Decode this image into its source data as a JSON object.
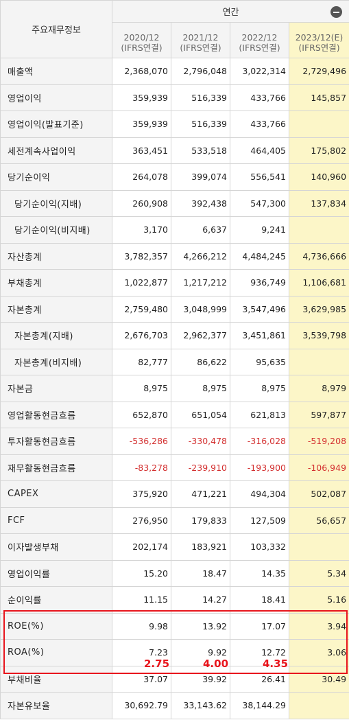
{
  "header": {
    "title": "주요재무정보",
    "annual_label": "연간",
    "columns": [
      {
        "period": "2020/12",
        "basis": "(IFRS연결)"
      },
      {
        "period": "2021/12",
        "basis": "(IFRS연결)"
      },
      {
        "period": "2022/12",
        "basis": "(IFRS연결)"
      },
      {
        "period": "2023/12(E)",
        "basis": "(IFRS연결)"
      }
    ],
    "toggle_icon": "minus-circle-icon"
  },
  "rows": [
    {
      "label": "매출액",
      "values": [
        "2,368,070",
        "2,796,048",
        "3,022,314",
        "2,729,496"
      ]
    },
    {
      "label": "영업이익",
      "values": [
        "359,939",
        "516,339",
        "433,766",
        "145,857"
      ]
    },
    {
      "label": "영업이익(발표기준)",
      "values": [
        "359,939",
        "516,339",
        "433,766",
        ""
      ]
    },
    {
      "label": "세전계속사업이익",
      "values": [
        "363,451",
        "533,518",
        "464,405",
        "175,802"
      ]
    },
    {
      "label": "당기순이익",
      "values": [
        "264,078",
        "399,074",
        "556,541",
        "140,960"
      ]
    },
    {
      "label": "당기순이익(지배)",
      "values": [
        "260,908",
        "392,438",
        "547,300",
        "137,834"
      ]
    },
    {
      "label": "당기순이익(비지배)",
      "values": [
        "3,170",
        "6,637",
        "9,241",
        ""
      ]
    },
    {
      "label": "자산총계",
      "values": [
        "3,782,357",
        "4,266,212",
        "4,484,245",
        "4,736,666"
      ]
    },
    {
      "label": "부채총계",
      "values": [
        "1,022,877",
        "1,217,212",
        "936,749",
        "1,106,681"
      ]
    },
    {
      "label": "자본총계",
      "values": [
        "2,759,480",
        "3,048,999",
        "3,547,496",
        "3,629,985"
      ]
    },
    {
      "label": "자본총계(지배)",
      "values": [
        "2,676,703",
        "2,962,377",
        "3,451,861",
        "3,539,798"
      ]
    },
    {
      "label": "자본총계(비지배)",
      "values": [
        "82,777",
        "86,622",
        "95,635",
        ""
      ]
    },
    {
      "label": "자본금",
      "values": [
        "8,975",
        "8,975",
        "8,975",
        "8,979"
      ]
    },
    {
      "label": "영업활동현금흐름",
      "values": [
        "652,870",
        "651,054",
        "621,813",
        "597,877"
      ]
    },
    {
      "label": "투자활동현금흐름",
      "values": [
        "-536,286",
        "-330,478",
        "-316,028",
        "-519,208"
      ]
    },
    {
      "label": "재무활동현금흐름",
      "values": [
        "-83,278",
        "-239,910",
        "-193,900",
        "-106,949"
      ]
    },
    {
      "label": "CAPEX",
      "values": [
        "375,920",
        "471,221",
        "494,304",
        "502,087"
      ]
    },
    {
      "label": "FCF",
      "values": [
        "276,950",
        "179,833",
        "127,509",
        "56,657"
      ]
    },
    {
      "label": "이자발생부채",
      "values": [
        "202,174",
        "183,921",
        "103,332",
        ""
      ]
    },
    {
      "label": "영업이익률",
      "values": [
        "15.20",
        "18.47",
        "14.35",
        "5.34"
      ]
    },
    {
      "label": "순이익률",
      "values": [
        "11.15",
        "14.27",
        "18.41",
        "5.16"
      ]
    },
    {
      "label": "ROE(%)",
      "values": [
        "9.98",
        "13.92",
        "17.07",
        "3.94"
      ]
    },
    {
      "label": "ROA(%)",
      "values": [
        "7.23",
        "9.92",
        "12.72",
        "3.06"
      ]
    },
    {
      "label": "부채비율",
      "values": [
        "37.07",
        "39.92",
        "26.41",
        "30.49"
      ]
    },
    {
      "label": "자본유보율",
      "values": [
        "30,692.79",
        "33,143.62",
        "38,144.29",
        ""
      ]
    }
  ],
  "annotations": [
    "2.75",
    "4.00",
    "4.35"
  ],
  "colors": {
    "highlight": "#e8141c",
    "negative": "#d32f2f",
    "estimate_bg": "#fcf6c8",
    "header_bg": "#f4f4f4"
  }
}
